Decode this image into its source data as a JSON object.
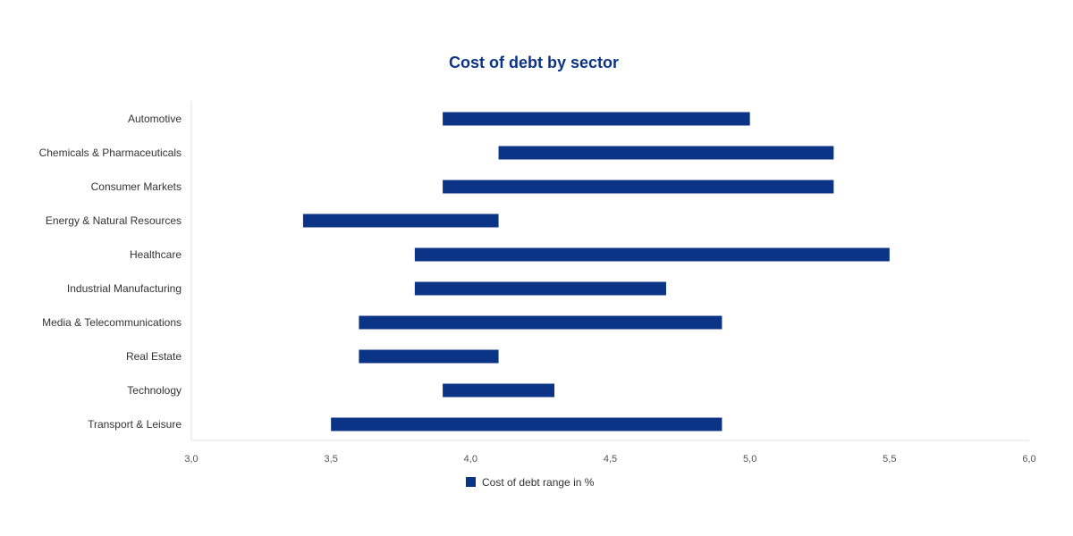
{
  "chart_data": {
    "type": "bar",
    "orientation": "horizontal",
    "title": "Cost of debt by sector",
    "categories": [
      "Automotive",
      "Chemicals & Pharmaceuticals",
      "Consumer Markets",
      "Energy & Natural Resources",
      "Healthcare",
      "Industrial Manufacturing",
      "Media & Telecommunications",
      "Real Estate",
      "Technology",
      "Transport & Leisure"
    ],
    "series": [
      {
        "name": "Cost of debt range in %",
        "color": "#0b3487",
        "ranges": [
          [
            3.9,
            5.0
          ],
          [
            4.1,
            5.3
          ],
          [
            3.9,
            5.3
          ],
          [
            3.4,
            4.1
          ],
          [
            3.8,
            5.5
          ],
          [
            3.8,
            4.7
          ],
          [
            3.6,
            4.9
          ],
          [
            3.6,
            4.1
          ],
          [
            3.9,
            4.3
          ],
          [
            3.5,
            4.9
          ]
        ]
      }
    ],
    "xlim": [
      3.0,
      6.0
    ],
    "xticks": [
      "3,0",
      "3,5",
      "4,0",
      "4,5",
      "5,0",
      "5,5",
      "6,0"
    ],
    "grid": false,
    "legend_position": "bottom"
  }
}
